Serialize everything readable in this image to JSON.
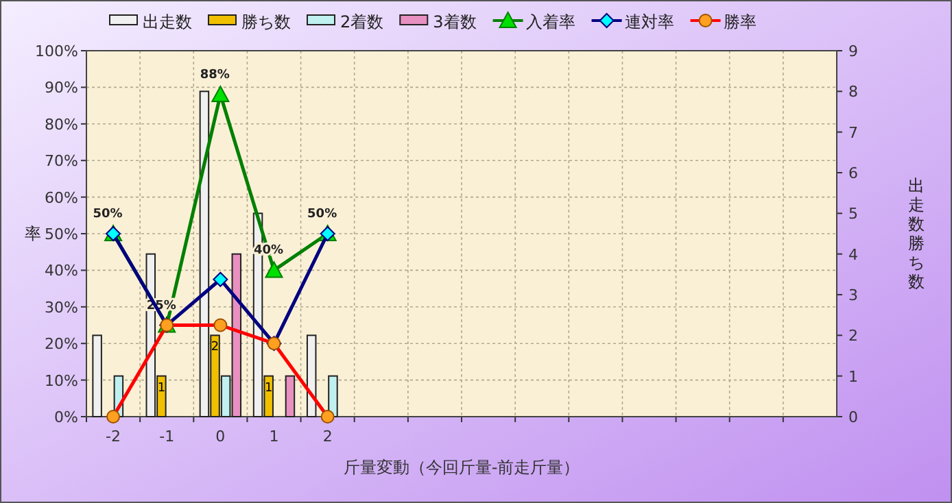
{
  "chart_data": {
    "type": "bar",
    "xlabel": "斤量変動（今回斤量-前走斤量）",
    "ylabel": "率",
    "y2label": "出走数勝ち数",
    "categories": [
      "-2",
      "-1",
      "0",
      "1",
      "2",
      null,
      null,
      null,
      null,
      null,
      null,
      null,
      null,
      null
    ],
    "ylim": [
      0,
      100
    ],
    "yticks": [
      {
        "value": 0,
        "label": "0%"
      },
      {
        "value": 10,
        "label": "10%"
      },
      {
        "value": 20,
        "label": "20%"
      },
      {
        "value": 30,
        "label": "30%"
      },
      {
        "value": 40,
        "label": "40%"
      },
      {
        "value": 50,
        "label": "50%"
      },
      {
        "value": 60,
        "label": "60%"
      },
      {
        "value": 70,
        "label": "70%"
      },
      {
        "value": 80,
        "label": "80%"
      },
      {
        "value": 90,
        "label": "90%"
      },
      {
        "value": 100,
        "label": "100%"
      }
    ],
    "y2lim": [
      0,
      9
    ],
    "y2ticks": [
      0,
      1,
      2,
      3,
      4,
      5,
      6,
      7,
      8,
      9
    ],
    "grid": true,
    "legend": "top",
    "series": [
      {
        "name": "出走数",
        "axis": "y2",
        "color": "#f0f0f0",
        "values": [
          2,
          4,
          8,
          5,
          2,
          null,
          null,
          null,
          null,
          null,
          null,
          null,
          null,
          null
        ]
      },
      {
        "name": "勝ち数",
        "axis": "y2",
        "color": "#f0c000",
        "values": [
          0,
          1,
          2,
          1,
          0,
          null,
          null,
          null,
          null,
          null,
          null,
          null,
          null,
          null
        ],
        "value_labels": [
          null,
          "1",
          "2",
          "1",
          null,
          null,
          null,
          null,
          null,
          null,
          null,
          null,
          null,
          null
        ]
      },
      {
        "name": "2着数",
        "axis": "y2",
        "color": "#c0f0f0",
        "values": [
          1,
          0,
          1,
          0,
          1,
          null,
          null,
          null,
          null,
          null,
          null,
          null,
          null,
          null
        ]
      },
      {
        "name": "3着数",
        "axis": "y2",
        "color": "#e890c0",
        "values": [
          0,
          0,
          4,
          1,
          0,
          null,
          null,
          null,
          null,
          null,
          null,
          null,
          null,
          null
        ]
      },
      {
        "name": "入着率",
        "type": "line",
        "marker": "triangle",
        "color": "#008000",
        "values": [
          50,
          25,
          88,
          40,
          50,
          null,
          null,
          null,
          null,
          null,
          null,
          null,
          null,
          null
        ],
        "value_labels": [
          "50%",
          "25%",
          "88%",
          "40%",
          "50%",
          null,
          null,
          null,
          null,
          null,
          null,
          null,
          null,
          null
        ]
      },
      {
        "name": "連対率",
        "type": "line",
        "marker": "diamond",
        "color": "#000080",
        "values": [
          50,
          25,
          37.5,
          20,
          50,
          null,
          null,
          null,
          null,
          null,
          null,
          null,
          null,
          null
        ]
      },
      {
        "name": "勝率",
        "type": "line",
        "marker": "circle",
        "color": "#ff0000",
        "values": [
          0,
          25,
          25,
          20,
          0,
          null,
          null,
          null,
          null,
          null,
          null,
          null,
          null,
          null
        ]
      }
    ]
  }
}
